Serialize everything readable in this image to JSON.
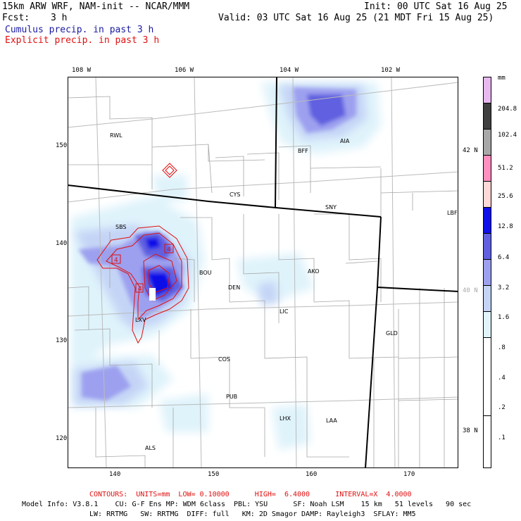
{
  "header": {
    "title": "15km ARW WRF, NAM-init -- NCAR/MMM",
    "init": "Init: 00 UTC Sat 16 Aug 25",
    "fcst_label": "Fcst:",
    "fcst_value": "3 h",
    "valid": "Valid: 03 UTC Sat 16 Aug 25 (21 MDT Fri 15 Aug 25)",
    "legend1": "Cumulus precip. in past 3 h",
    "legend2": "Explicit precip. in past 3 h"
  },
  "colors": {
    "cumulus": "#1a1aa0",
    "explicit": "#e01010"
  },
  "map": {
    "top_lon_labels": [
      "108 W",
      "106 W",
      "104 W",
      "102 W"
    ],
    "left_labels": [
      "150",
      "140",
      "130",
      "120"
    ],
    "bottom_labels": [
      "140",
      "150",
      "160",
      "170"
    ],
    "right_lat_labels": [
      "42 N",
      "40 N",
      "38 N"
    ],
    "stations": [
      "RWL",
      "BFF",
      "AIA",
      "CYS",
      "SNY",
      "LBF",
      "SBS",
      "BOU",
      "DEN",
      "AKO",
      "LIC",
      "GLD",
      "LXV",
      "COS",
      "PUB",
      "LHX",
      "LAA",
      "ALS"
    ],
    "contour_labels": [
      "4",
      "4",
      "4"
    ]
  },
  "legend": {
    "unit": "mm",
    "labels": [
      "204.8",
      "102.4",
      "51.2",
      "25.6",
      "12.8",
      "6.4",
      "3.2",
      "1.6",
      ".8",
      ".4",
      ".2",
      ".1"
    ],
    "colors": [
      "#e8b8f0",
      "#404040",
      "#a8a8a8",
      "#ff8fbf",
      "#ffd8d8",
      "#1010e8",
      "#6060e0",
      "#9da0ef",
      "#c4d4f6",
      "#e0f4fa",
      "#ffffff",
      "#ffffff"
    ]
  },
  "footer": {
    "contours": "CONTOURS:  UNITS=mm  LOW= 0.10000      HIGH=  6.4000      INTERVAL=X  4.0000",
    "line1": "Model Info: V3.8.1    CU: G-F Ens MP: WDM 6class  PBL: YSU      SF: Noah LSM    15 km   51 levels   90 sec",
    "line2": "LW: RRTMG   SW: RRTMG  DIFF: full   KM: 2D Smagor DAMP: Rayleigh3  SFLAY: MM5"
  }
}
